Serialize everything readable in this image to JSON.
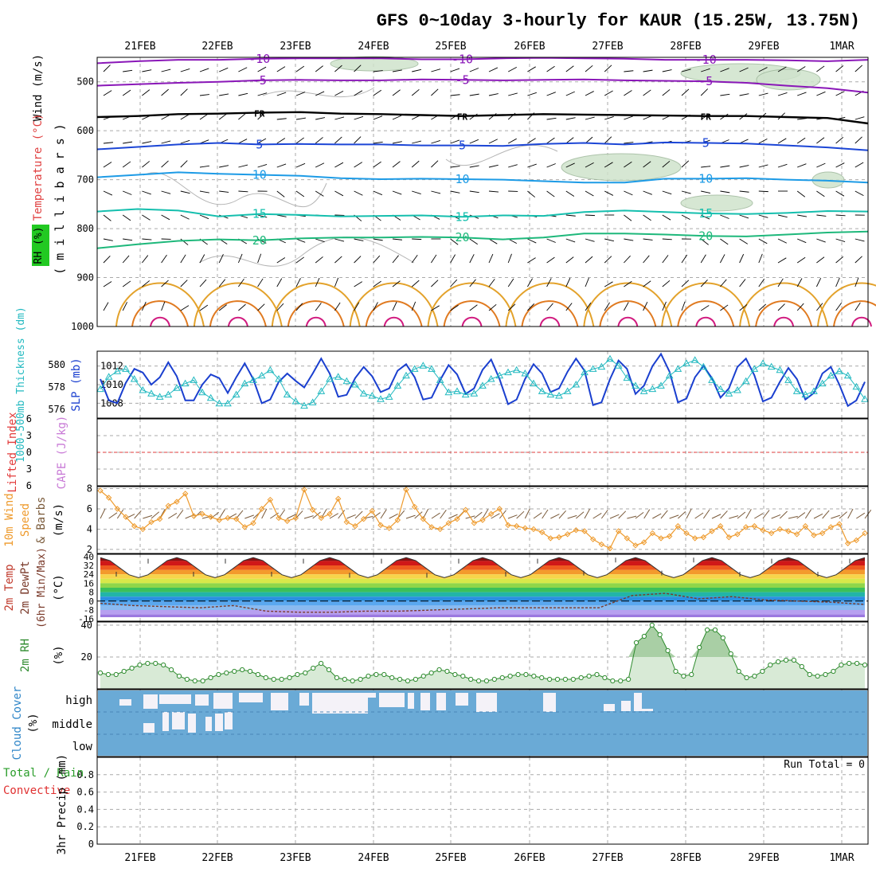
{
  "title": "GFS 0~10day 3-hourly for KAUR (15.25W, 13.75N)",
  "dates": [
    "21FEB",
    "22FEB",
    "23FEB",
    "24FEB",
    "25FEB",
    "26FEB",
    "27FEB",
    "28FEB",
    "29FEB",
    "1MAR"
  ],
  "run_total": "Run Total = 0",
  "colors": {
    "temp_m10": "#8a17b8",
    "temp_m5": "#8a17b8",
    "temp_fr": "#000000",
    "temp_5": "#1c46d6",
    "temp_10": "#1d9be6",
    "temp_15": "#15bfae",
    "temp_20": "#1eb87b",
    "temp_25": "#e3a22b",
    "temp_30": "#e07a20",
    "temp_35": "#d11a7f",
    "slp": "#1a3fcf",
    "thickness": "#22b9c0",
    "cape": "#c879d6",
    "lifted_index": "#e23b3b",
    "wind10": "#ee9a2c",
    "barbs": "#7a5a3a",
    "rh2m": "#2e8b2e",
    "rh_fill": "#d8ead6",
    "cloud": "#6aaad6",
    "cloud_gap": "#f4f2f8",
    "precip_total": "#2a9d2a",
    "precip_conv": "#e03030"
  },
  "chart_data": [
    {
      "type": "line",
      "panel": "upper-air",
      "labels": {
        "ylabel_wind": "Wind (m/s)",
        "ylabel_temp": "Temperature (°C)",
        "ylabel_rh": "RH (%)",
        "ylabel_p": "( m i l l i b a r s )"
      },
      "y_ticks": [
        "500",
        "600",
        "700",
        "800",
        "900",
        "1000"
      ],
      "ylim": [
        450,
        1000
      ],
      "isotherms": [
        {
          "label": "-10",
          "p": [
            462,
            458,
            455,
            455,
            453,
            452,
            452,
            452,
            454,
            454,
            452,
            451,
            452,
            453,
            455,
            455,
            455,
            456,
            458,
            455
          ]
        },
        {
          "label": "-5",
          "p": [
            508,
            505,
            502,
            500,
            497,
            496,
            497,
            497,
            495,
            496,
            497,
            496,
            495,
            497,
            498,
            499,
            502,
            508,
            513,
            522
          ]
        },
        {
          "label": "FR",
          "p": [
            572,
            570,
            566,
            565,
            563,
            562,
            565,
            566,
            568,
            570,
            568,
            566,
            567,
            568,
            569,
            570,
            570,
            572,
            574,
            585
          ]
        },
        {
          "label": "5",
          "p": [
            638,
            633,
            628,
            625,
            628,
            627,
            628,
            628,
            630,
            630,
            631,
            627,
            625,
            628,
            624,
            625,
            626,
            630,
            634,
            640
          ]
        },
        {
          "label": "10",
          "p": [
            695,
            690,
            685,
            688,
            690,
            692,
            697,
            699,
            698,
            699,
            700,
            703,
            706,
            706,
            698,
            698,
            697,
            700,
            702,
            706
          ]
        },
        {
          "label": "15",
          "p": [
            765,
            760,
            763,
            775,
            770,
            772,
            775,
            774,
            773,
            776,
            773,
            774,
            766,
            763,
            766,
            769,
            770,
            768,
            764,
            765
          ]
        },
        {
          "label": "20",
          "p": [
            840,
            832,
            825,
            822,
            824,
            820,
            818,
            818,
            817,
            818,
            822,
            818,
            810,
            810,
            812,
            815,
            816,
            812,
            808,
            806
          ]
        }
      ],
      "notes": [
        "10",
        "30"
      ]
    },
    {
      "type": "line",
      "panel": "slp-thickness",
      "labels": {
        "slp": "SLP (mb)",
        "thickness": "1000-500mb Thickness (dm)"
      },
      "y_ticks_slp": [
        "1012",
        "1010",
        "1008"
      ],
      "y_ticks_thk": [
        "580",
        "578",
        "576"
      ],
      "ylim_slp": [
        1006.4,
        1013.6
      ],
      "ylim_thk": [
        575.2,
        581.2
      ],
      "x_hours_step": 3,
      "slp": [
        1010.6,
        1008.3,
        1008.0,
        1010.2,
        1011.7,
        1011.3,
        1010.0,
        1010.8,
        1012.4,
        1010.9,
        1008.3,
        1008.3,
        1010.0,
        1011.1,
        1010.7,
        1009.1,
        1010.8,
        1012.3,
        1010.6,
        1008.0,
        1008.4,
        1010.3,
        1011.2,
        1010.4,
        1009.7,
        1011.2,
        1012.8,
        1011.2,
        1008.7,
        1008.9,
        1010.7,
        1011.9,
        1010.9,
        1009.2,
        1009.6,
        1011.5,
        1012.2,
        1010.8,
        1008.4,
        1008.6,
        1010.5,
        1012.1,
        1011.1,
        1009.0,
        1009.6,
        1011.6,
        1012.7,
        1010.6,
        1007.9,
        1008.4,
        1010.6,
        1012.2,
        1011.2,
        1009.2,
        1009.6,
        1011.4,
        1012.8,
        1011.5,
        1007.8,
        1008.1,
        1010.6,
        1012.6,
        1011.7,
        1009.0,
        1009.9,
        1012.0,
        1013.3,
        1011.4,
        1008.1,
        1008.5,
        1010.8,
        1012.0,
        1010.7,
        1008.6,
        1009.6,
        1011.9,
        1012.8,
        1011.0,
        1008.2,
        1008.6,
        1010.3,
        1011.8,
        1010.6,
        1008.4,
        1009.1,
        1011.2,
        1011.9,
        1010.0,
        1007.7,
        1008.3,
        1010.3
      ],
      "thickness": [
        577.8,
        578.9,
        579.4,
        579.6,
        578.7,
        577.7,
        577.4,
        577.1,
        577.3,
        577.9,
        578.3,
        578.6,
        577.5,
        577.0,
        576.5,
        576.5,
        577.3,
        578.3,
        578.6,
        579.0,
        579.5,
        578.7,
        577.3,
        576.7,
        576.3,
        576.6,
        577.6,
        578.7,
        578.9,
        578.5,
        578.2,
        577.4,
        577.2,
        576.9,
        577.1,
        578.1,
        579.0,
        579.6,
        579.9,
        579.6,
        578.6,
        577.5,
        577.6,
        577.3,
        577.4,
        578.1,
        578.7,
        579.0,
        579.3,
        579.5,
        579.2,
        578.3,
        577.6,
        577.3,
        577.2,
        577.6,
        578.2,
        579.3,
        579.6,
        579.8,
        580.5,
        579.9,
        578.8,
        578.1,
        577.6,
        577.8,
        578.1,
        579.0,
        579.6,
        580.1,
        580.4,
        579.8,
        578.6,
        577.8,
        577.4,
        577.7,
        578.5,
        579.6,
        580.1,
        579.8,
        579.5,
        578.6,
        577.6,
        577.3,
        577.6,
        578.3,
        579.0,
        579.4,
        579.0,
        578.0,
        576.9
      ]
    },
    {
      "type": "line",
      "panel": "instability",
      "labels": {
        "lifted_index": "Lifted Index",
        "cape": "CAPE (J/kg)"
      },
      "y_ticks": [
        "-6",
        "-3",
        "0",
        "3",
        "6"
      ],
      "ylim": [
        -6,
        6
      ],
      "zero_line": 0
    },
    {
      "type": "line",
      "panel": "wind10m",
      "labels": {
        "ylabel": "10m Wind Speed & Barbs (m/s)"
      },
      "y_ticks": [
        "8",
        "6",
        "4",
        "2"
      ],
      "ylim": [
        1.6,
        8.2
      ],
      "values": [
        7.8,
        7.1,
        6.0,
        5.2,
        4.3,
        4.0,
        4.7,
        5.0,
        6.3,
        6.7,
        7.5,
        5.3,
        5.5,
        5.2,
        4.9,
        5.1,
        5.0,
        4.2,
        4.6,
        6.0,
        6.9,
        5.1,
        4.8,
        5.1,
        7.9,
        5.9,
        5.1,
        5.5,
        7.0,
        4.7,
        4.3,
        5.0,
        5.8,
        4.4,
        4.1,
        4.9,
        7.9,
        6.2,
        5.0,
        4.2,
        4.0,
        4.6,
        5.0,
        5.9,
        4.6,
        4.9,
        5.5,
        6.0,
        4.4,
        4.3,
        4.1,
        4.0,
        3.7,
        3.1,
        3.2,
        3.5,
        3.9,
        3.8,
        3.0,
        2.5,
        2.1,
        3.8,
        3.1,
        2.4,
        2.7,
        3.6,
        3.1,
        3.3,
        4.3,
        3.6,
        3.1,
        3.2,
        3.8,
        4.3,
        3.2,
        3.5,
        4.2,
        4.3,
        3.9,
        3.6,
        4.0,
        3.8,
        3.5,
        4.3,
        3.4,
        3.6,
        4.2,
        4.5,
        2.6,
        2.9,
        3.6
      ]
    },
    {
      "type": "area",
      "panel": "temp2m",
      "labels": {
        "ylabel": "2m Temp 2m DewPt (6hr Min/Max) (°C)"
      },
      "y_ticks": [
        "40",
        "32",
        "24",
        "16",
        "8",
        "0",
        "-8",
        "-16"
      ],
      "ylim": [
        -18,
        42
      ],
      "temp_max": [
        38,
        38,
        38,
        38,
        38,
        38,
        39,
        39,
        38,
        38
      ],
      "temp_min": [
        22,
        22,
        22,
        21,
        21,
        22,
        23,
        23,
        22,
        22
      ],
      "dewpoint": [
        -2,
        -4,
        -5,
        -6,
        -4,
        -9,
        -10,
        -10,
        -9,
        -9,
        -8,
        -7,
        -6,
        -6,
        -6,
        -6,
        5,
        7,
        2,
        4,
        1,
        0,
        -1,
        -3
      ]
    },
    {
      "type": "area",
      "panel": "rh2m",
      "labels": {
        "ylabel": "2m RH (%)"
      },
      "y_ticks": [
        "40",
        "20"
      ],
      "ylim": [
        0,
        42
      ],
      "values": [
        10,
        9,
        9,
        11,
        13,
        15,
        16,
        16,
        15,
        12,
        8,
        6,
        5,
        5,
        7,
        9,
        10,
        11,
        12,
        11,
        9,
        7,
        6,
        6,
        7,
        9,
        10,
        13,
        16,
        12,
        7,
        6,
        5,
        6,
        8,
        9,
        9,
        7,
        6,
        5,
        6,
        8,
        10,
        12,
        11,
        9,
        8,
        6,
        5,
        5,
        6,
        7,
        8,
        9,
        9,
        8,
        7,
        6,
        6,
        6,
        6,
        7,
        8,
        9,
        7,
        5,
        5,
        6,
        29,
        33,
        40,
        34,
        24,
        11,
        8,
        9,
        26,
        37,
        37,
        32,
        22,
        11,
        7,
        8,
        11,
        15,
        17,
        18,
        18,
        14,
        9,
        8,
        9,
        11,
        15,
        16,
        16,
        15
      ]
    },
    {
      "type": "heatmap",
      "panel": "cloud",
      "labels": {
        "ylabel": "Cloud Cover (%)",
        "rows": [
          "high",
          "middle",
          "low"
        ]
      }
    },
    {
      "type": "bar",
      "panel": "precip",
      "labels": {
        "ylabel": "3hr Precip (mm)",
        "legend_total": "Total / Rain",
        "legend_conv": "Convective"
      },
      "y_ticks": [
        "0.8",
        "0.6",
        "0.4",
        "0.2",
        "0"
      ],
      "ylim": [
        0,
        1
      ],
      "values": []
    }
  ]
}
